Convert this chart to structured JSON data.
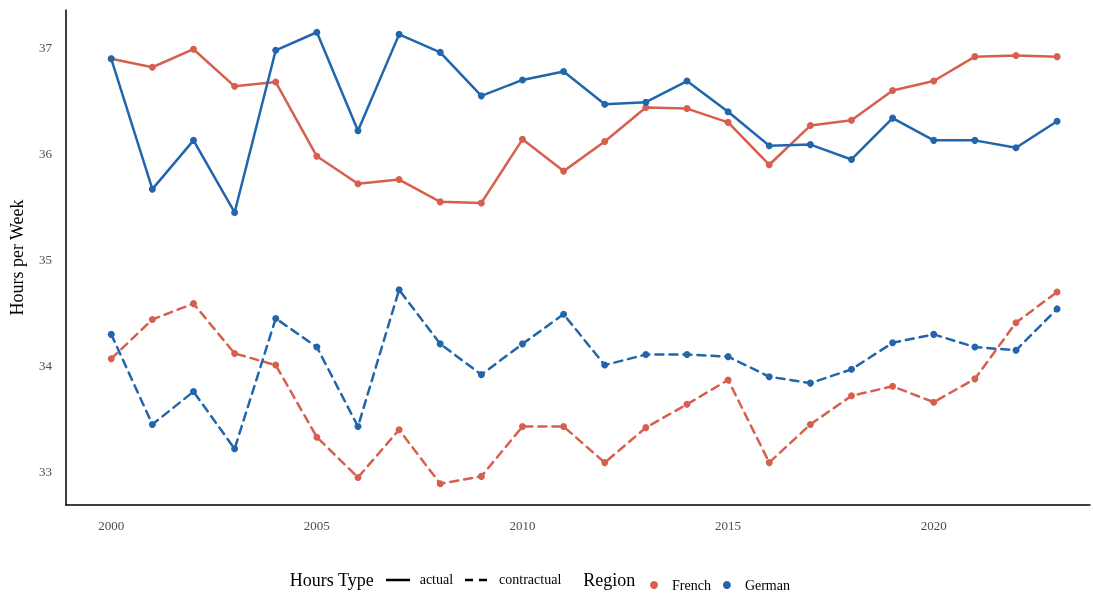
{
  "chart_data": {
    "type": "line",
    "ylabel": "Hours per Week",
    "x": [
      2000,
      2001,
      2002,
      2003,
      2004,
      2005,
      2006,
      2007,
      2008,
      2009,
      2010,
      2011,
      2012,
      2013,
      2014,
      2015,
      2016,
      2017,
      2018,
      2019,
      2020,
      2021,
      2022,
      2023
    ],
    "xlim": [
      1998.9,
      2023.8
    ],
    "xticks": [
      2000,
      2005,
      2010,
      2015,
      2020
    ],
    "ylim": [
      32.68,
      37.35
    ],
    "yticks": [
      33,
      34,
      35,
      36,
      37
    ],
    "grid": false,
    "marker": "circle",
    "legend": "bottom",
    "legend_title": [
      "Hours Type",
      "Region"
    ],
    "annotations": [
      "actual",
      "contractual"
    ],
    "series": [
      {
        "name": "French",
        "color": "#d6604d",
        "line_style": "solid",
        "values": [
          36.89,
          36.81,
          36.98,
          36.63,
          36.67,
          35.97,
          35.71,
          35.75,
          35.54,
          35.53,
          36.13,
          35.83,
          36.11,
          36.43,
          36.42,
          36.29,
          35.89,
          36.26,
          36.31,
          36.59,
          36.68,
          36.91,
          36.92,
          36.91
        ]
      },
      {
        "name": "German",
        "color": "#2166ac",
        "line_style": "solid",
        "values": [
          36.89,
          35.66,
          36.12,
          35.44,
          36.97,
          37.14,
          36.21,
          37.12,
          36.95,
          36.54,
          36.69,
          36.77,
          36.46,
          36.48,
          36.68,
          36.39,
          36.07,
          36.08,
          35.94,
          36.33,
          36.12,
          36.12,
          36.05,
          36.3
        ]
      },
      {
        "color": "#d6604d",
        "line_style": "dashed",
        "values": [
          34.06,
          34.43,
          34.58,
          34.11,
          34.0,
          33.32,
          32.94,
          33.39,
          32.88,
          32.95,
          33.42,
          33.42,
          33.08,
          33.41,
          33.63,
          33.86,
          33.08,
          33.44,
          33.71,
          33.8,
          33.65,
          33.87,
          34.4,
          34.69
        ]
      },
      {
        "color": "#2166ac",
        "line_style": "dashed",
        "values": [
          34.29,
          33.44,
          33.75,
          33.21,
          34.44,
          34.17,
          33.42,
          34.71,
          34.2,
          33.91,
          34.2,
          34.48,
          34.0,
          34.1,
          34.1,
          34.08,
          33.89,
          33.83,
          33.96,
          34.21,
          34.29,
          34.17,
          34.14,
          34.53
        ]
      }
    ]
  }
}
